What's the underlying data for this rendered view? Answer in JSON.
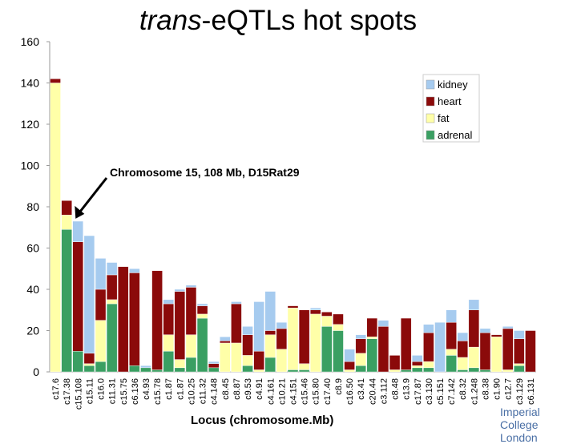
{
  "title_italic": "trans",
  "title_rest": "-eQTLs hot spots",
  "logo_line1": "Imperial College",
  "logo_line2": "London",
  "chart_data": {
    "type": "bar",
    "stacked": true,
    "xlabel": "Locus (chromosome.Mb)",
    "ylabel": "",
    "ylim": [
      0,
      160
    ],
    "yticks": [
      0,
      20,
      40,
      60,
      80,
      100,
      120,
      140,
      160
    ],
    "grid": false,
    "legend_position": "top-right",
    "categories": [
      "c17.6",
      "c17.38",
      "c15.108",
      "c15.11",
      "c16.0",
      "c11.31",
      "c15.75",
      "c6.136",
      "c4.93",
      "c15.78",
      "c1.87",
      "c1.87",
      "c10.25",
      "c11.32",
      "c4.148",
      "c8.45",
      "c8.87",
      "c9.53",
      "c4.91",
      "c4.161",
      "c10.21",
      "c4.151",
      "c15.46",
      "c15.80",
      "c17.40",
      "c8.9",
      "c16.50",
      "c3.41",
      "c20.44",
      "c3.112",
      "c8.48",
      "c13.9",
      "c17.87",
      "c3.130",
      "c5.151",
      "c7.142",
      "c8.32",
      "c1.248",
      "c8.38",
      "c1.90",
      "c12.7",
      "c3.129",
      "c6.131"
    ],
    "series": [
      {
        "name": "kidney",
        "color": "#a6cbef",
        "values": [
          0,
          0,
          10,
          57,
          15,
          6,
          0,
          2,
          1,
          0,
          2,
          1,
          1,
          1,
          1,
          2,
          1,
          4,
          24,
          19,
          3,
          0,
          0,
          1,
          0,
          0,
          6,
          2,
          0,
          3,
          0,
          0,
          3,
          4,
          24,
          6,
          4,
          5,
          2,
          0,
          1,
          4,
          0
        ]
      },
      {
        "name": "heart",
        "color": "#8b0a0a",
        "values": [
          2,
          7,
          53,
          5,
          15,
          12,
          51,
          45,
          0,
          48,
          15,
          33,
          23,
          4,
          2,
          1,
          19,
          10,
          9,
          2,
          10,
          1,
          26,
          2,
          2,
          5,
          4,
          7,
          9,
          22,
          7,
          25,
          2,
          14,
          0,
          13,
          8,
          18,
          18,
          1,
          20,
          12,
          20
        ]
      },
      {
        "name": "fat",
        "color": "#ffffa8",
        "values": [
          140,
          7,
          0,
          1,
          20,
          2,
          0,
          0,
          0,
          0,
          8,
          4,
          11,
          2,
          0,
          14,
          14,
          5,
          1,
          11,
          11,
          30,
          3,
          28,
          5,
          3,
          1,
          6,
          1,
          0,
          1,
          0,
          1,
          3,
          0,
          3,
          6,
          10,
          0,
          17,
          1,
          1,
          0
        ]
      },
      {
        "name": "adrenal",
        "color": "#3a9f62",
        "values": [
          0,
          69,
          10,
          3,
          5,
          33,
          0,
          3,
          2,
          1,
          10,
          2,
          7,
          26,
          2,
          0,
          0,
          3,
          0,
          7,
          0,
          1,
          1,
          0,
          22,
          20,
          0,
          3,
          16,
          0,
          0,
          1,
          2,
          2,
          0,
          8,
          1,
          2,
          1,
          0,
          0,
          3,
          0
        ]
      }
    ],
    "annotation": {
      "text": "Chromosome 15, 108 Mb, D15Rat29",
      "target_category": "c15.108"
    }
  }
}
